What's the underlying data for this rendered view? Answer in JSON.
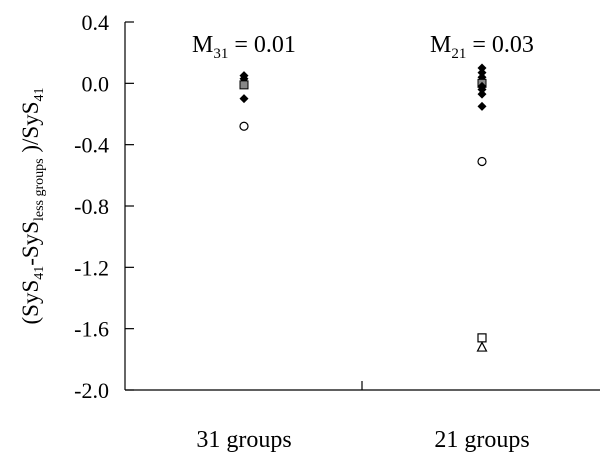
{
  "chart_data": {
    "type": "scatter",
    "title": "",
    "ylabel": {
      "parts": [
        {
          "text": "(SyS",
          "sub": false
        },
        {
          "text": "41",
          "sub": true
        },
        {
          "text": "-SyS",
          "sub": false
        },
        {
          "text": "less groups",
          "sub": true
        },
        {
          "text": " )/SyS",
          "sub": false
        },
        {
          "text": "41",
          "sub": true
        }
      ]
    },
    "xlabel": "",
    "ylim": [
      -2.0,
      0.4
    ],
    "yticks": [
      0.4,
      0.0,
      -0.4,
      -0.8,
      -1.2,
      -1.6,
      -2.0
    ],
    "ytick_labels": [
      "0.4",
      "0.0",
      "-0.4",
      "-0.8",
      "-1.2",
      "-1.6",
      "-2.0"
    ],
    "categories": [
      "31 groups",
      "21 groups"
    ],
    "annotations": [
      {
        "category": 0,
        "main": "M",
        "sub": "31",
        "rest": " = 0.01"
      },
      {
        "category": 1,
        "main": "M",
        "sub": "21",
        "rest": " = 0.03"
      }
    ],
    "points": [
      {
        "cat": 0,
        "y": 0.05,
        "marker": "diamond"
      },
      {
        "cat": 0,
        "y": 0.03,
        "marker": "diamond"
      },
      {
        "cat": 0,
        "y": 0.01,
        "marker": "diamond"
      },
      {
        "cat": 0,
        "y": -0.01,
        "marker": "square-gray"
      },
      {
        "cat": 0,
        "y": -0.1,
        "marker": "diamond"
      },
      {
        "cat": 0,
        "y": -0.28,
        "marker": "circle-open"
      },
      {
        "cat": 1,
        "y": 0.1,
        "marker": "diamond"
      },
      {
        "cat": 1,
        "y": 0.07,
        "marker": "diamond"
      },
      {
        "cat": 1,
        "y": 0.04,
        "marker": "diamond"
      },
      {
        "cat": 1,
        "y": 0.02,
        "marker": "diamond"
      },
      {
        "cat": 1,
        "y": 0.0,
        "marker": "square-gray"
      },
      {
        "cat": 1,
        "y": -0.02,
        "marker": "diamond"
      },
      {
        "cat": 1,
        "y": -0.04,
        "marker": "diamond"
      },
      {
        "cat": 1,
        "y": -0.07,
        "marker": "diamond"
      },
      {
        "cat": 1,
        "y": -0.15,
        "marker": "diamond"
      },
      {
        "cat": 1,
        "y": -0.51,
        "marker": "circle-open"
      },
      {
        "cat": 1,
        "y": -1.66,
        "marker": "square-open"
      },
      {
        "cat": 1,
        "y": -1.72,
        "marker": "triangle-open"
      }
    ],
    "grid": false,
    "colors": {
      "marker": "#000000",
      "square_fill": "#888888"
    }
  }
}
